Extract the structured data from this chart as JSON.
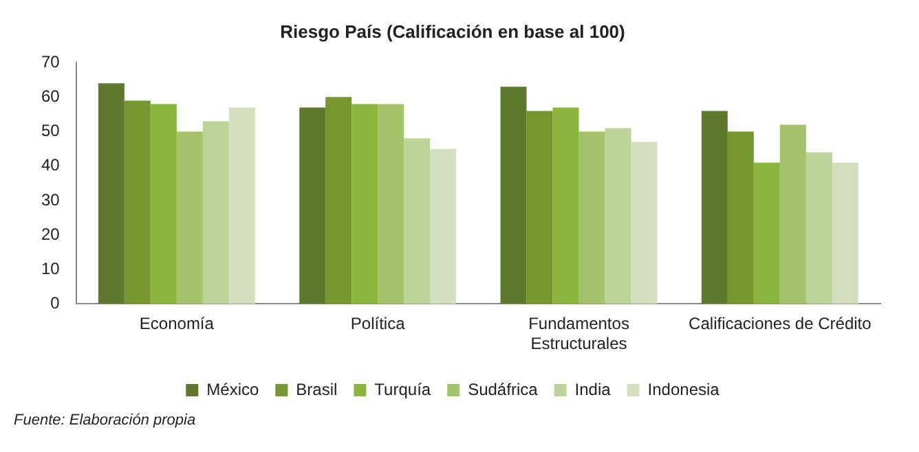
{
  "chart_data": {
    "type": "bar",
    "title": "Riesgo País (Calificación en base al 100)",
    "categories": [
      "Economía",
      "Política",
      "Fundamentos\nEstructurales",
      "Calificaciones de Crédito"
    ],
    "series": [
      {
        "name": "México",
        "color": "#5f7a2b",
        "values": [
          64,
          57,
          63,
          56
        ]
      },
      {
        "name": "Brasil",
        "color": "#76962f",
        "values": [
          59,
          60,
          56,
          50
        ]
      },
      {
        "name": "Turquía",
        "color": "#8db53e",
        "values": [
          58,
          58,
          57,
          41
        ]
      },
      {
        "name": "Sudáfrica",
        "color": "#a3c46a",
        "values": [
          50,
          58,
          50,
          52
        ]
      },
      {
        "name": "India",
        "color": "#bcd39a",
        "values": [
          53,
          48,
          51,
          44
        ]
      },
      {
        "name": "Indonesia",
        "color": "#d3dfbf",
        "values": [
          57,
          45,
          47,
          41
        ]
      }
    ],
    "ylim": [
      0,
      70
    ],
    "yticks": [
      0,
      10,
      20,
      30,
      40,
      50,
      60,
      70
    ],
    "grid": false,
    "legend": "bottom",
    "annotations": [
      "Fuente: Elaboración propia"
    ]
  }
}
